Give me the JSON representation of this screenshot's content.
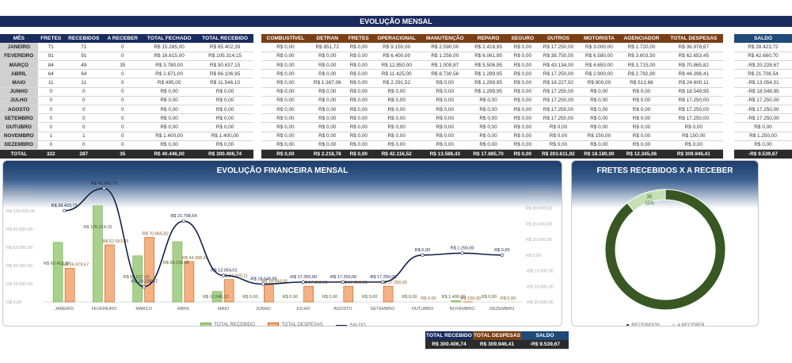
{
  "title": "EVOLUÇÃO MENSAL",
  "table_left": {
    "headers": [
      "MÊS",
      "FRETES",
      "RECEBIDOS",
      "A RECEBER",
      "TOTAL FECHADO",
      "TOTAL RECEBIDO"
    ],
    "rows": [
      [
        "JANEIRO",
        "71",
        "71",
        "0",
        "R$ 15.285,00",
        "R$ 65.402,39"
      ],
      [
        "FEVEREIRO",
        "91",
        "91",
        "0",
        "R$ 16.615,00",
        "R$ 105.314,15"
      ],
      [
        "MARÇO",
        "84",
        "49",
        "35",
        "R$ 3.780,00",
        "R$ 50.637,15"
      ],
      [
        "ABRIL",
        "64",
        "64",
        "0",
        "R$ 2.871,00",
        "R$ 66.106,95"
      ],
      [
        "MAIO",
        "11",
        "11",
        "0",
        "R$ 495,00",
        "R$ 11.546,10"
      ],
      [
        "JUNHO",
        "0",
        "0",
        "0",
        "R$ 0,00",
        "R$ 0,00"
      ],
      [
        "JULHO",
        "0",
        "0",
        "0",
        "R$ 0,00",
        "R$ 0,00"
      ],
      [
        "AGOSTO",
        "0",
        "0",
        "0",
        "R$ 0,00",
        "R$ 0,00"
      ],
      [
        "SETEMBRO",
        "0",
        "0",
        "0",
        "R$ 0,00",
        "R$ 0,00"
      ],
      [
        "OUTUBRO",
        "0",
        "0",
        "0",
        "R$ 0,00",
        "R$ 0,00"
      ],
      [
        "NOVEMBRO",
        "1",
        "1",
        "0",
        "R$ 1.400,00",
        "R$ 1.400,00"
      ],
      [
        "DEZEMBRO",
        "0",
        "0",
        "0",
        "R$ 0,00",
        "R$ 0,00"
      ]
    ],
    "total": [
      "TOTAL",
      "322",
      "287",
      "35",
      "R$ 40.446,00",
      "R$ 300.406,74"
    ]
  },
  "table_expenses": {
    "headers": [
      "COMBUSTÍVEL",
      "DETRAN",
      "FRETES",
      "OPERACIONAL",
      "MANUTENÇÃO",
      "REPARO",
      "SEGURO",
      "OUTROS",
      "MOTORISTA",
      "AGENCIADOR",
      "TOTAL DESPESAS"
    ],
    "rows": [
      [
        "R$ 0,00",
        "R$ 851,72",
        "R$ 0,00",
        "R$ 9.150,00",
        "R$ 2.590,00",
        "R$ 2.416,95",
        "R$ 0,00",
        "R$ 17.250,00",
        "R$ 3.000,00",
        "R$ 1.720,00",
        "R$ 36.978,67"
      ],
      [
        "R$ 0,00",
        "R$ 0,00",
        "R$ 0,00",
        "R$ 6.400,00",
        "R$ 1.258,00",
        "R$ 6.061,95",
        "R$ 0,00",
        "R$ 38.750,00",
        "R$ 6.580,00",
        "R$ 3.603,50",
        "R$ 62.653,45"
      ],
      [
        "R$ 0,00",
        "R$ 0,00",
        "R$ 0,00",
        "R$ 12.850,00",
        "R$ 1.009,87",
        "R$ 5.506,95",
        "R$ 0,00",
        "R$ 43.134,00",
        "R$ 4.650,00",
        "R$ 3.715,00",
        "R$ 70.865,82"
      ],
      [
        "R$ 0,00",
        "R$ 0,00",
        "R$ 0,00",
        "R$ 11.425,00",
        "R$ 8.730,56",
        "R$ 1.299,95",
        "R$ 0,00",
        "R$ 17.250,00",
        "R$ 2.900,00",
        "R$ 2.792,90",
        "R$ 44.398,41"
      ],
      [
        "R$ 0,00",
        "R$ 1.367,06",
        "R$ 0,00",
        "R$ 2.291,52",
        "R$ 0,00",
        "R$ 1.299,95",
        "R$ 0,00",
        "R$ 18.227,92",
        "R$ 900,00",
        "R$ 513,66",
        "R$ 24.600,11"
      ],
      [
        "R$ 0,00",
        "R$ 0,00",
        "R$ 0,00",
        "R$ 0,00",
        "R$ 0,00",
        "R$ 1.299,95",
        "R$ 0,00",
        "R$ 17.250,00",
        "R$ 0,00",
        "R$ 0,00",
        "R$ 18.549,95"
      ],
      [
        "R$ 0,00",
        "R$ 0,00",
        "R$ 0,00",
        "R$ 0,00",
        "R$ 0,00",
        "R$ 0,00",
        "R$ 0,00",
        "R$ 17.250,00",
        "R$ 0,00",
        "R$ 0,00",
        "R$ 17.250,00"
      ],
      [
        "R$ 0,00",
        "R$ 0,00",
        "R$ 0,00",
        "R$ 0,00",
        "R$ 0,00",
        "R$ 0,00",
        "R$ 0,00",
        "R$ 17.250,00",
        "R$ 0,00",
        "R$ 0,00",
        "R$ 17.250,00"
      ],
      [
        "R$ 0,00",
        "R$ 0,00",
        "R$ 0,00",
        "R$ 0,00",
        "R$ 0,00",
        "R$ 0,00",
        "R$ 0,00",
        "R$ 17.250,00",
        "R$ 0,00",
        "R$ 0,00",
        "R$ 17.250,00"
      ],
      [
        "R$ 0,00",
        "R$ 0,00",
        "R$ 0,00",
        "R$ 0,00",
        "R$ 0,00",
        "R$ 0,00",
        "R$ 0,00",
        "R$ 0,00",
        "R$ 0,00",
        "R$ 0,00",
        "R$ 0,00"
      ],
      [
        "R$ 0,00",
        "R$ 0,00",
        "R$ 0,00",
        "R$ 0,00",
        "R$ 0,00",
        "R$ 0,00",
        "R$ 0,00",
        "R$ 0,00",
        "R$ 150,00",
        "R$ 0,00",
        "R$ 150,00"
      ],
      [
        "R$ 0,00",
        "R$ 0,00",
        "R$ 0,00",
        "R$ 0,00",
        "R$ 0,00",
        "R$ 0,00",
        "R$ 0,00",
        "R$ 0,00",
        "R$ 0,00",
        "R$ 0,00",
        "R$ 0,00"
      ]
    ],
    "total": [
      "R$ 0,00",
      "R$ 2.218,78",
      "R$ 0,00",
      "R$ 42.116,52",
      "R$ 13.588,43",
      "R$ 17.885,70",
      "R$ 0,00",
      "R$ 203.611,92",
      "R$ 18.180,00",
      "R$ 12.345,06",
      "R$ 309.946,41"
    ]
  },
  "table_saldo": {
    "header": "SALDO",
    "rows": [
      "R$ 28.423,72",
      "R$ 42.660,70",
      "-R$ 20.228,67",
      "R$ 21.708,54",
      "-R$ 13.054,01",
      "-R$ 18.549,95",
      "-R$ 17.250,00",
      "-R$ 17.250,00",
      "-R$ 17.250,00",
      "R$ 0,00",
      "R$ 1.250,00",
      "R$ 0,00"
    ],
    "total": "-R$ 9.539,67"
  },
  "colors": {
    "navy": "#1a2b5e",
    "brown": "#7b3f16",
    "saldo_blue": "#1f4a7a",
    "bar_green": "#a9d18e",
    "bar_orange": "#f4b183",
    "line": "#0f1f47",
    "donut_dark": "#385723",
    "donut_light": "#c5e0b4"
  },
  "chart_data": [
    {
      "type": "bar",
      "title": "EVOLUÇÃO FINANCEIRA MENSAL",
      "categories": [
        "JANEIRO",
        "FEVEREIRO",
        "MARÇO",
        "ABRIL",
        "MAIO",
        "JUNHO",
        "JULHO",
        "AGOSTO",
        "SETEMBRO",
        "OUTUBRO",
        "NOVEMBRO",
        "DEZEMBRO"
      ],
      "series": [
        {
          "name": "TOTAL RECEBIDO",
          "type": "bar",
          "axis": "left",
          "values": [
            65402.39,
            105314.15,
            50637.15,
            66106.95,
            11546.1,
            0,
            0,
            0,
            0,
            0,
            1400,
            0
          ],
          "labels": [
            "R$ 65.402,39",
            "R$ 105.314,15",
            "R$ 50.637,15",
            "R$ 66.106,95",
            "R$ 11.546,10",
            "R$ 0,00",
            "R$ 0,00",
            "R$ 0,00",
            "R$ 0,00",
            "R$ 0,00",
            "R$ 1.400,00",
            "R$ 0,00"
          ]
        },
        {
          "name": "TOTAL DESPESAS",
          "type": "bar",
          "axis": "left",
          "values": [
            36978.67,
            62653.45,
            70865.82,
            44398.41,
            24600.11,
            18549.95,
            17250,
            17250,
            17250,
            0,
            150,
            0
          ],
          "labels": [
            "R$ 36.978,67",
            "R$ 62.653,45",
            "R$ 70.865,82",
            "R$ 44.398,41",
            "R$ 24.600,11",
            "R$ 18.549,95",
            "R$ 17.250,00",
            "R$ 17.250,00",
            "R$ 17.250,00",
            "R$ 0,00",
            "R$ 150,00",
            "R$ 0,00"
          ]
        },
        {
          "name": "SALDO",
          "type": "line",
          "axis": "right",
          "values": [
            28423.72,
            42660.7,
            -20228.67,
            21708.54,
            -13054.01,
            -18549.95,
            -17250,
            -17250,
            -17250,
            0,
            1250,
            0
          ],
          "labels": [
            "R$ 28.423,72",
            "R$ 42.660,70",
            "-R$ 20.228,67",
            "R$ 21.708,54",
            "-R$ 13.054,01",
            "-R$ 18.549,95",
            "-R$ 17.250,00",
            "-R$ 17.250,00",
            "-R$ 17.250,00",
            "R$ 0,00",
            "R$ 1.250,00",
            "R$ 0,00"
          ]
        }
      ],
      "left_axis_ticks": [
        "R$ 0,00",
        "R$ 20.000,00",
        "R$ 40.000,00",
        "R$ 60.000,00",
        "R$ 80.000,00",
        "R$ 100.000,00",
        "R$ 120.000,00"
      ],
      "right_axis_ticks": [
        "-R$ 30.000,00",
        "-R$ 20.000,00",
        "-R$ 10.000,00",
        "R$ 0,00",
        "R$ 10.000,00",
        "R$ 20.000,00",
        "R$ 30.000,00",
        "R$ 40.000,00"
      ],
      "ylim_left": [
        0,
        120000
      ],
      "ylim_right": [
        -30000,
        40000
      ],
      "legend": [
        "TOTAL RECEBIDO",
        "TOTAL DESPESAS",
        "SALDO"
      ],
      "legend_position": "bottom"
    },
    {
      "type": "pie",
      "title": "FRETES RECEBIDOS X A RECEBER",
      "categories": [
        "RECEBIDOS",
        "A RECEBER"
      ],
      "values": [
        287,
        35
      ],
      "percent": [
        "89%",
        "11%"
      ],
      "donut": true,
      "legend": [
        "RECEBIDOS",
        "A RECEBER"
      ],
      "legend_position": "bottom"
    }
  ],
  "summary": {
    "headers": [
      "TOTAL RECEBIDO",
      "TOTAL DESPESAS",
      "SALDO"
    ],
    "values": [
      "R$ 300.406,74",
      "R$ 309.946,41",
      "-R$ 9.539,67"
    ]
  }
}
